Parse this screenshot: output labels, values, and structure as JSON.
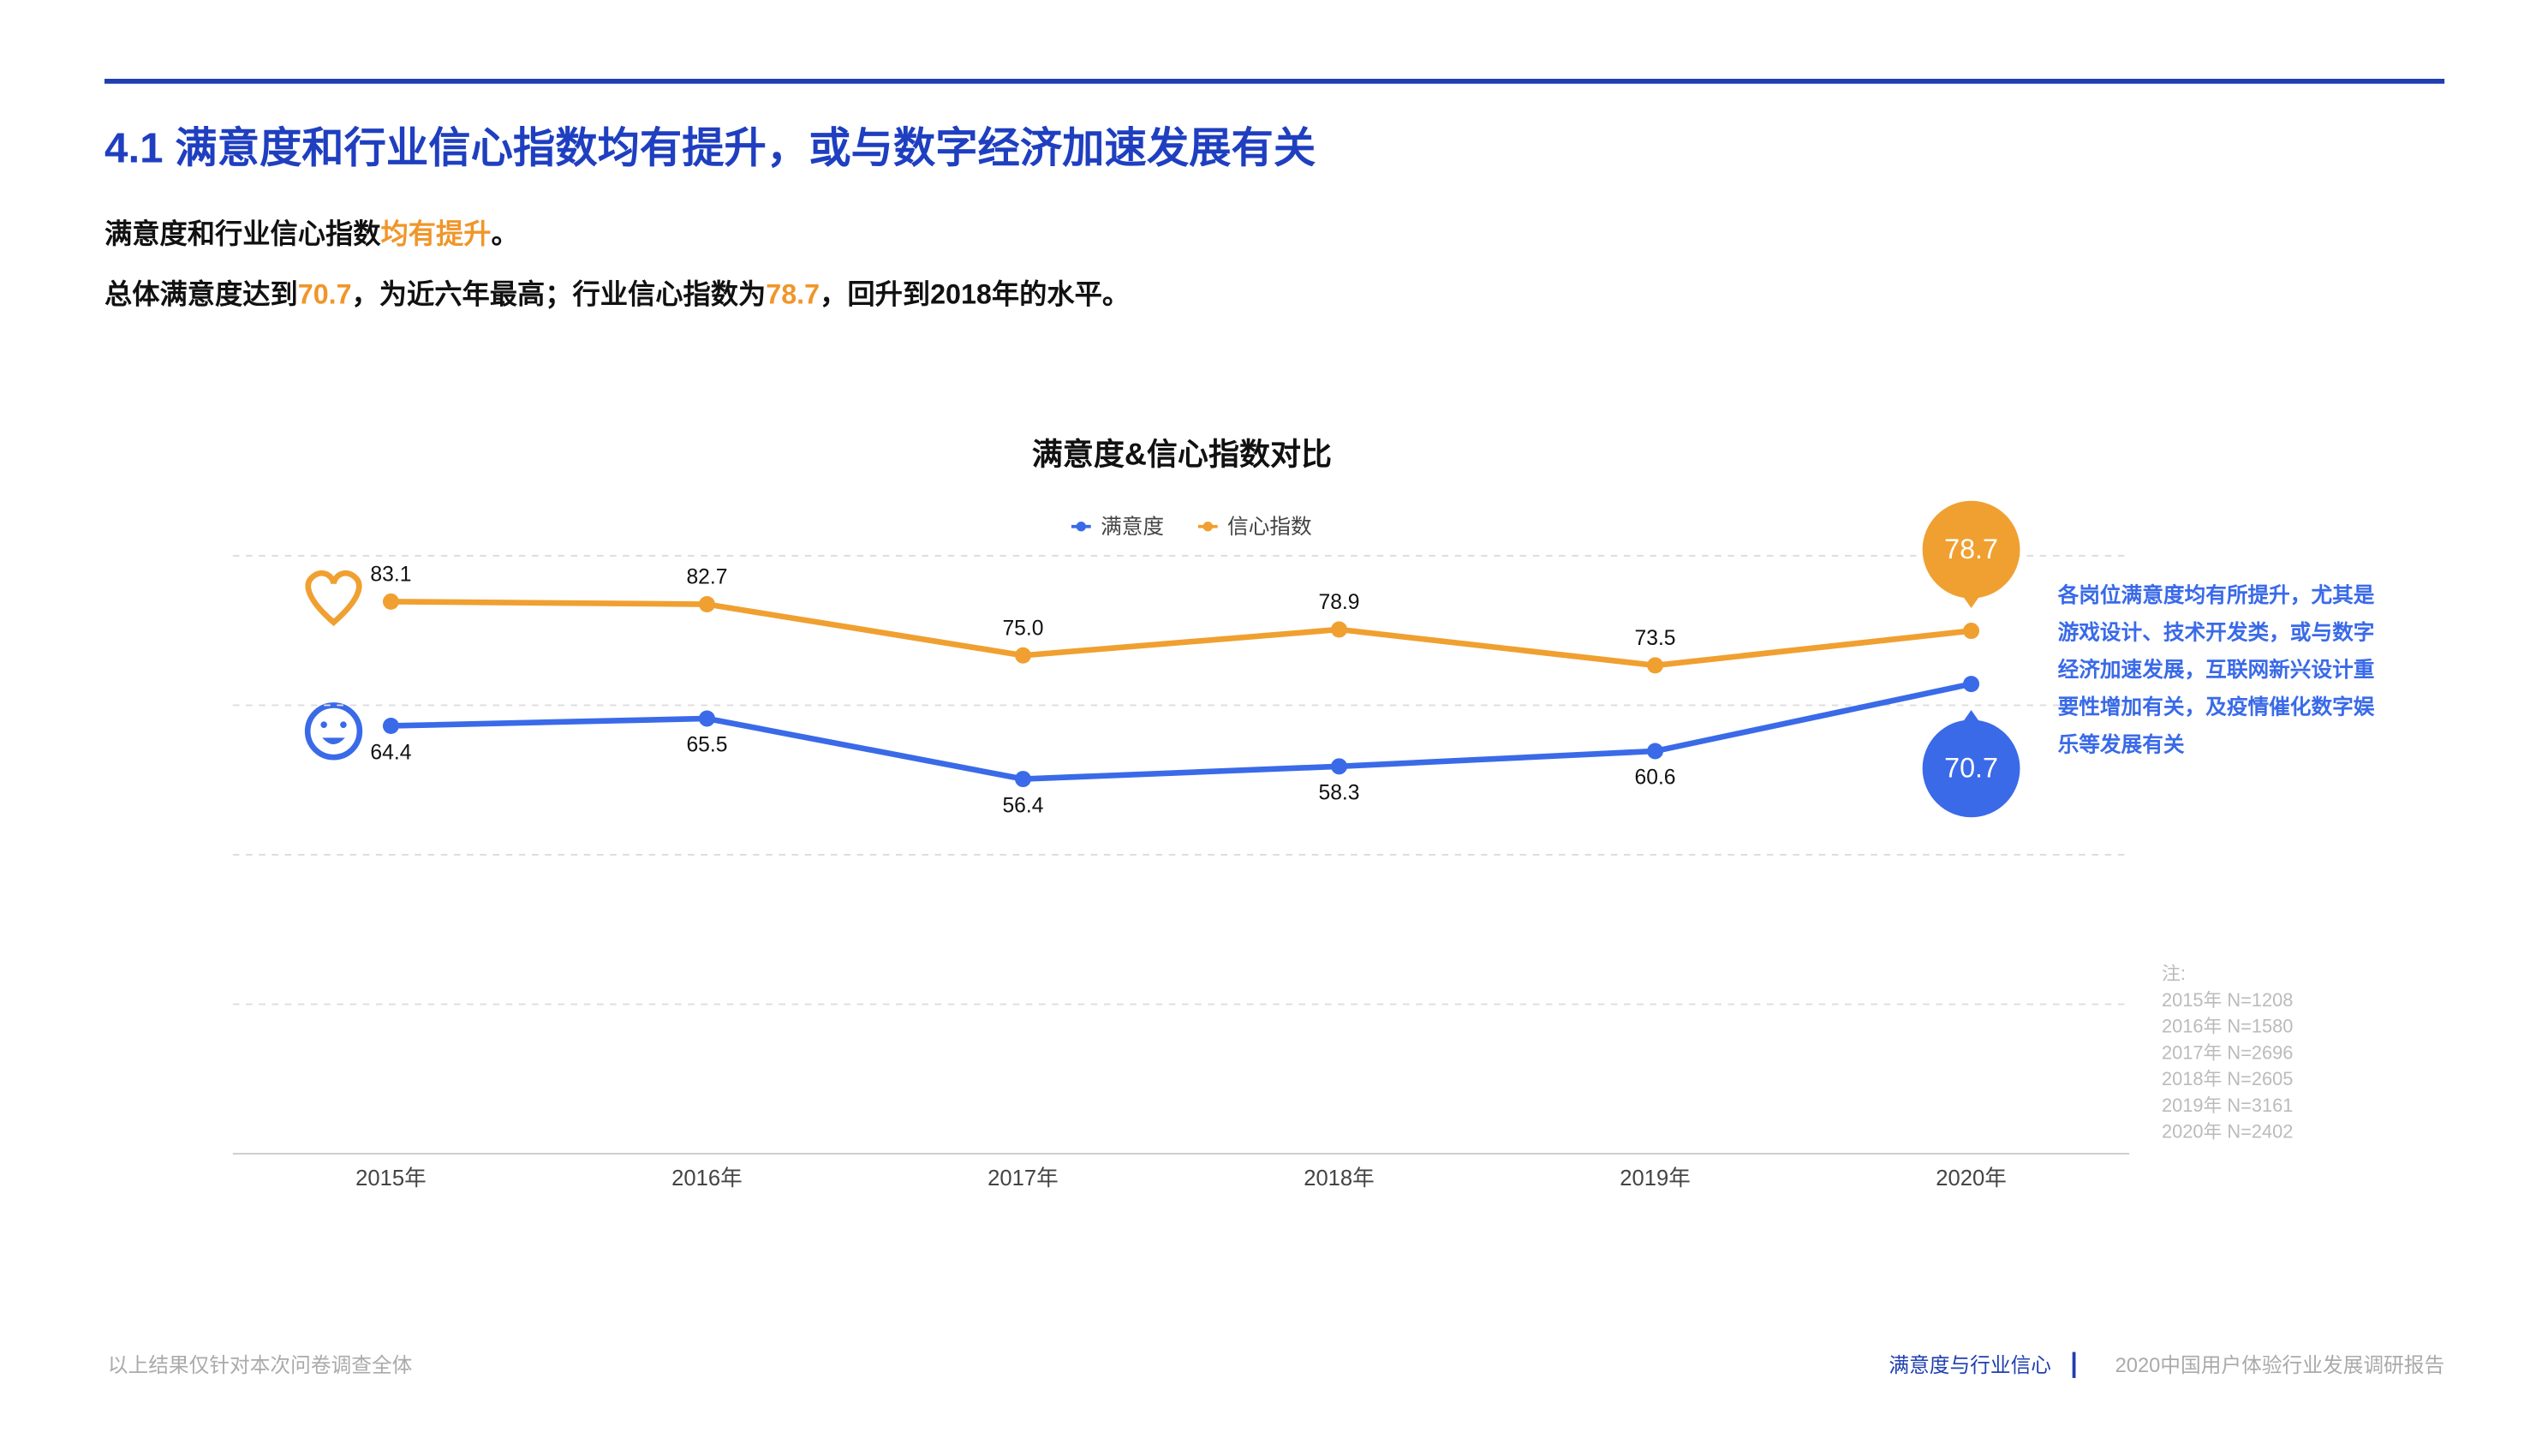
{
  "header": {
    "title": "4.1 满意度和行业信心指数均有提升，或与数字经济加速发展有关"
  },
  "summary": {
    "line1": [
      "满意度和行业信心指数",
      "均有提升",
      "。"
    ],
    "line2": [
      "总体满意度达到",
      "70.7",
      "，为近六年最高；行业信心指数为",
      "78.7",
      "，回升到2018年的水平。"
    ]
  },
  "chart_data": {
    "type": "line",
    "title": "满意度&信心指数对比",
    "categories": [
      "2015年",
      "2016年",
      "2017年",
      "2018年",
      "2019年",
      "2020年"
    ],
    "series": [
      {
        "name": "满意度",
        "color": "#3a6ae8",
        "values": [
          64.4,
          65.5,
          56.4,
          58.3,
          60.6,
          70.7
        ],
        "value_labels": [
          "64.4",
          "65.5",
          "56.4",
          "58.3",
          "60.6",
          "70.7"
        ]
      },
      {
        "name": "信心指数",
        "color": "#f0a030",
        "values": [
          83.1,
          82.7,
          75.0,
          78.9,
          73.5,
          78.7
        ],
        "value_labels": [
          "83.1",
          "82.7",
          "75.0",
          "78.9",
          "73.5",
          "78.7"
        ]
      }
    ],
    "ylim": [
      0,
      90
    ],
    "yticks": [
      0,
      22.5,
      45,
      67.5,
      90
    ],
    "grid": true,
    "legend": "top"
  },
  "annotation": [
    "各岗位满意度均有所提升，尤其是",
    "游戏设计、技术开发类，或与数字",
    "经济加速发展，互联网新兴设计重",
    "要性增加有关，及疫情催化数字娱",
    "乐等发展有关"
  ],
  "notes": [
    "注:",
    "2015年 N=1208",
    "2016年 N=1580",
    "2017年 N=2696",
    "2018年 N=2605",
    "2019年 N=3161",
    "2020年 N=2402"
  ],
  "footer": {
    "left": "以上结果仅针对本次问卷调查全体",
    "section": "满意度与行业信心",
    "report": "2020中国用户体验行业发展调研报告"
  }
}
